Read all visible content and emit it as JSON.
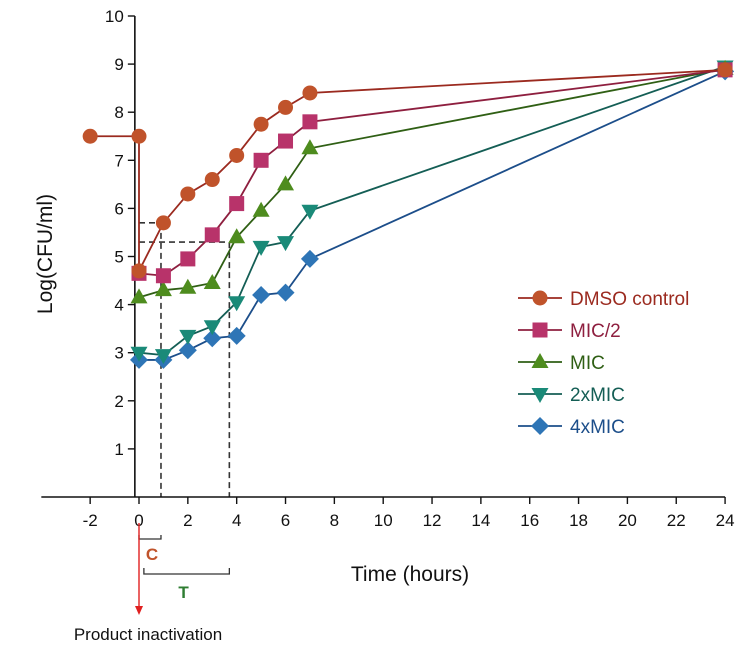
{
  "chart_data": {
    "type": "line",
    "xlabel": "Time (hours)",
    "ylabel": "Log(CFU/ml)",
    "xlim": [
      -4,
      24
    ],
    "ylim": [
      0,
      10
    ],
    "xticks": [
      -2,
      0,
      2,
      4,
      6,
      8,
      10,
      12,
      14,
      16,
      18,
      20,
      22,
      24
    ],
    "yticks": [
      1,
      2,
      3,
      4,
      5,
      6,
      7,
      8,
      9,
      10
    ],
    "legend_position": "center-right",
    "series": [
      {
        "name": "DMSO control",
        "color": "#c0532b",
        "line_color": "#9b2a1f",
        "marker": "circle",
        "x": [
          -2,
          0,
          0,
          1,
          2,
          3,
          4,
          5,
          6,
          7,
          24
        ],
        "y": [
          7.5,
          7.5,
          4.7,
          5.7,
          6.3,
          6.6,
          7.1,
          7.75,
          8.1,
          8.4,
          8.88
        ]
      },
      {
        "name": "MIC/2",
        "color": "#b8336a",
        "line_color": "#8e1f3f",
        "marker": "square",
        "x": [
          0,
          1,
          2,
          3,
          4,
          5,
          6,
          7,
          24
        ],
        "y": [
          4.65,
          4.6,
          4.95,
          5.45,
          6.1,
          7.0,
          7.4,
          7.8,
          8.88
        ]
      },
      {
        "name": "MIC",
        "color": "#4e8c1e",
        "line_color": "#2f5f14",
        "marker": "triangle-up",
        "x": [
          0,
          1,
          2,
          3,
          4,
          5,
          6,
          7,
          24
        ],
        "y": [
          4.15,
          4.3,
          4.35,
          4.45,
          5.4,
          5.95,
          6.5,
          7.25,
          8.9
        ]
      },
      {
        "name": "2xMIC",
        "color": "#1a8a78",
        "line_color": "#145e55",
        "marker": "triangle-down",
        "x": [
          0,
          1,
          2,
          3,
          4,
          5,
          6,
          7,
          24
        ],
        "y": [
          3.0,
          2.95,
          3.35,
          3.55,
          4.05,
          5.2,
          5.3,
          5.95,
          8.95
        ]
      },
      {
        "name": "4xMIC",
        "color": "#2e75b6",
        "line_color": "#1c4e8a",
        "marker": "diamond",
        "x": [
          0,
          1,
          2,
          3,
          4,
          5,
          6,
          7,
          24
        ],
        "y": [
          2.85,
          2.85,
          3.05,
          3.3,
          3.35,
          4.2,
          4.25,
          4.95,
          8.85
        ]
      }
    ],
    "reference_lines": [
      {
        "x": 0.9,
        "y": 5.7
      },
      {
        "x": 3.7,
        "y": 5.3
      }
    ],
    "annotations": {
      "c_label": "C",
      "t_label": "T",
      "c_range": [
        0,
        0.9
      ],
      "t_range": [
        0.2,
        3.7
      ],
      "inactivation_label": "Product inactivation",
      "c_color": "#c0532b",
      "t_color": "#2e7d32",
      "arrow_color": "#e02020"
    }
  }
}
